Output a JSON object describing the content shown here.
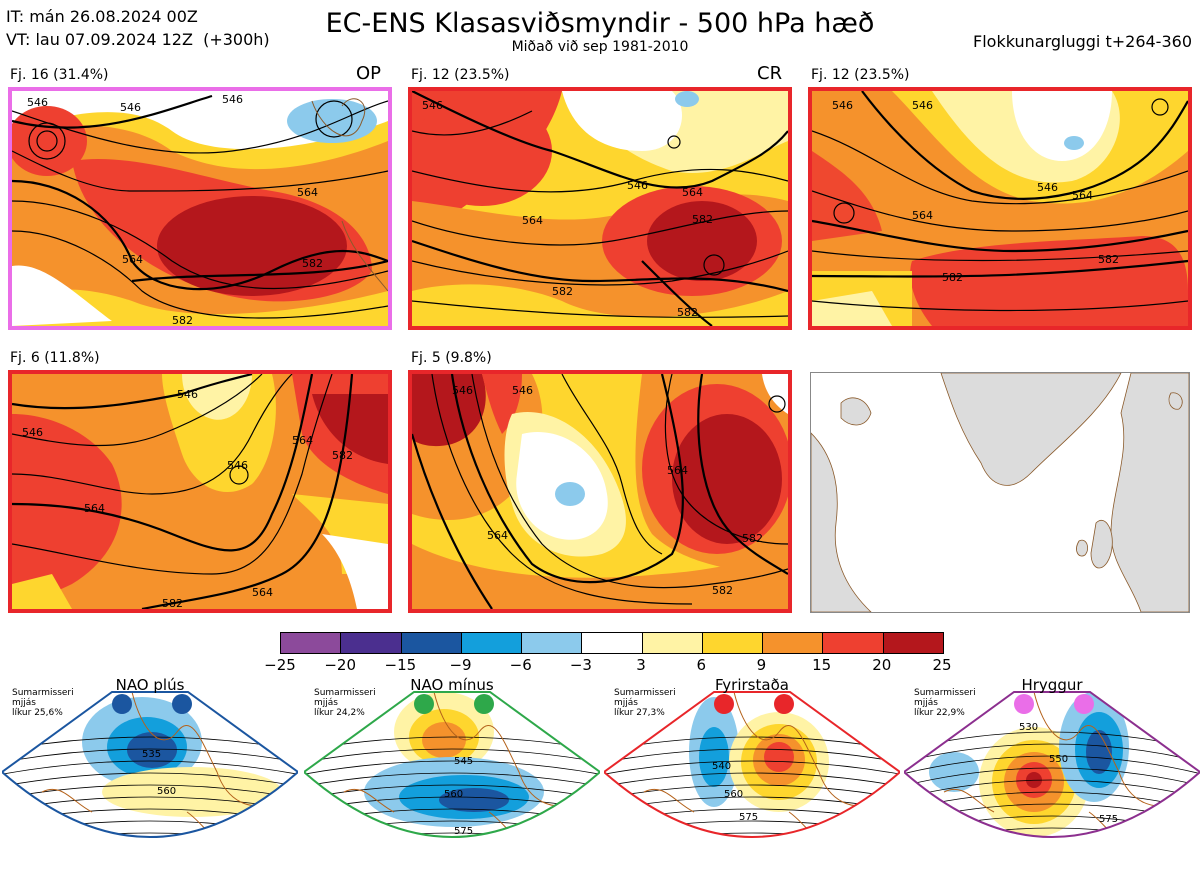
{
  "header": {
    "it_line": "IT: mán 26.08.2024 00Z",
    "vt_line": "VT: lau 07.09.2024 12Z  (+300h)",
    "title": "EC-ENS Klasasviðsmyndir - 500 hPa hæð",
    "subtitle": "Miðað við sep 1981-2010",
    "window": "Flokkunargluggi t+264-360"
  },
  "clusters": [
    {
      "label": "Fj. 16 (31.4%)",
      "tag": "OP",
      "frame_color": "#ea6ee8"
    },
    {
      "label": "Fj. 12 (23.5%)",
      "tag": "CR",
      "frame_color": "#e8262a"
    },
    {
      "label": "Fj. 12 (23.5%)",
      "tag": "",
      "frame_color": "#e8262a"
    },
    {
      "label": "Fj. 6 (11.8%)",
      "tag": "",
      "frame_color": "#e8262a"
    },
    {
      "label": "Fj. 5 (9.8%)",
      "tag": "",
      "frame_color": "#e8262a"
    }
  ],
  "contour_labels": {
    "p1": [
      "546",
      "564",
      "582",
      "546",
      "546",
      "564",
      "582"
    ],
    "p2": [
      "546",
      "564",
      "582",
      "546",
      "564",
      "582",
      "582"
    ],
    "p3": [
      "546",
      "564",
      "582",
      "564",
      "582",
      "546",
      "546"
    ],
    "p4": [
      "546",
      "546",
      "564",
      "546",
      "564",
      "564",
      "582",
      "582"
    ],
    "p5": [
      "546",
      "546",
      "564",
      "564",
      "582",
      "582"
    ]
  },
  "colorbar": {
    "ticks": [
      "−25",
      "−20",
      "−15",
      "−9",
      "−6",
      "−3",
      "3",
      "6",
      "9",
      "15",
      "20",
      "25"
    ],
    "colors": [
      "#8c4a9b",
      "#4b2f8f",
      "#1b56a0",
      "#139fdc",
      "#8ccaec",
      "#ffffff",
      "#fff3a5",
      "#fed62e",
      "#f5922c",
      "#ee4030",
      "#b4171c"
    ]
  },
  "regimes": [
    {
      "name": "NAO plús",
      "season": "Sumarmisseri",
      "ratio": "mjjás",
      "likelihood": "líkur 25,6%",
      "frame_color": "#1b56a0",
      "dot_color": "#1b56a0",
      "contours": [
        "535",
        "560"
      ]
    },
    {
      "name": "NAO mínus",
      "season": "Sumarmisseri",
      "ratio": "mjjás",
      "likelihood": "líkur 24,2%",
      "frame_color": "#2ea84a",
      "dot_color": "#2ea84a",
      "contours": [
        "545",
        "560",
        "575"
      ]
    },
    {
      "name": "Fyrirstaða",
      "season": "Sumarmisseri",
      "ratio": "mjjás",
      "likelihood": "líkur 27,3%",
      "frame_color": "#e8262a",
      "dot_color": "#e8262a",
      "contours": [
        "540",
        "560",
        "575"
      ]
    },
    {
      "name": "Hryggur",
      "season": "Sumarmisseri",
      "ratio": "mjjás",
      "likelihood": "líkur 22,9%",
      "frame_color": "#8c2f8f",
      "dot_color": "#ea6ee8",
      "contours": [
        "530",
        "550",
        "575"
      ]
    }
  ]
}
